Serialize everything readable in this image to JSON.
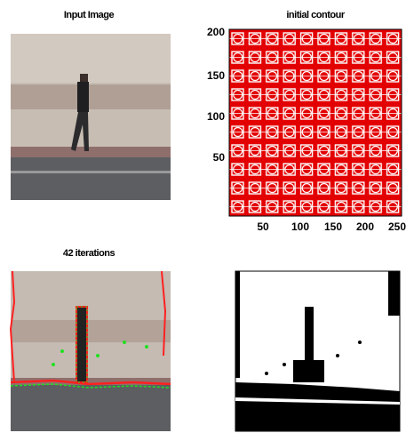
{
  "panels": [
    {
      "title": "Input Image"
    },
    {
      "title": "initial contour",
      "xticks": [
        50,
        100,
        150,
        200,
        250
      ],
      "yticks": [
        50,
        100,
        150,
        200
      ]
    },
    {
      "title": "42 iterations"
    },
    {}
  ]
}
